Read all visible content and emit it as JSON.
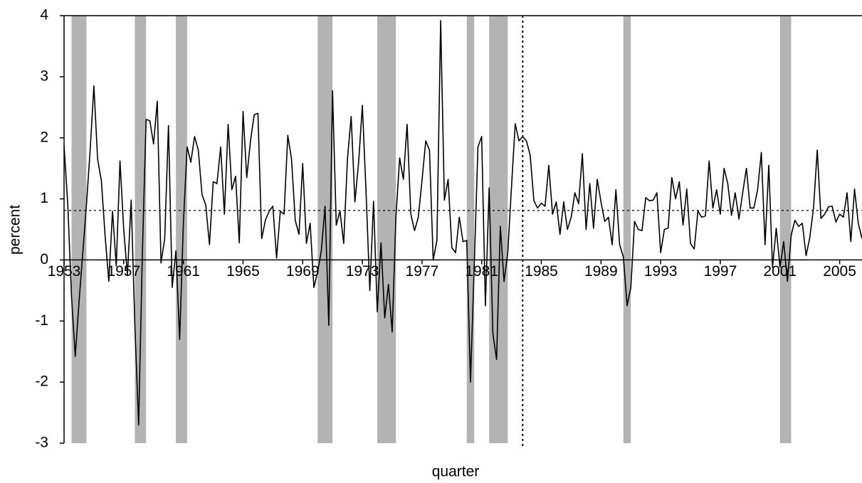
{
  "chart_data": {
    "type": "line",
    "x_label": "quarter",
    "y_label": "percent",
    "xlim": [
      1953,
      2006.5
    ],
    "ylim": [
      -3,
      4
    ],
    "xticks": [
      1953,
      1957,
      1961,
      1965,
      1969,
      1973,
      1977,
      1981,
      1985,
      1989,
      1993,
      1997,
      2001,
      2005
    ],
    "yticks": [
      -3,
      -2,
      -1,
      0,
      1,
      2,
      3,
      4
    ],
    "shaded_periods": [
      [
        1953.5,
        1954.5
      ],
      [
        1957.75,
        1958.5
      ],
      [
        1960.5,
        1961.25
      ],
      [
        1970,
        1971
      ],
      [
        1974,
        1975.25
      ],
      [
        1980,
        1980.5
      ],
      [
        1981.5,
        1982.75
      ],
      [
        1990.5,
        1991
      ],
      [
        2001,
        2001.75
      ]
    ],
    "shade_color": "#b3b3b3",
    "reference_y": 0.81,
    "reference_x": 1983.75,
    "series": [
      {
        "color": "#000000",
        "x": [
          1953,
          1953.25,
          1953.5,
          1953.75,
          1954,
          1954.25,
          1954.5,
          1954.75,
          1955,
          1955.25,
          1955.5,
          1955.75,
          1956,
          1956.25,
          1956.5,
          1956.75,
          1957,
          1957.25,
          1957.5,
          1957.75,
          1958,
          1958.25,
          1958.5,
          1958.75,
          1959,
          1959.25,
          1959.5,
          1959.75,
          1960,
          1960.25,
          1960.5,
          1960.75,
          1961,
          1961.25,
          1961.5,
          1961.75,
          1962,
          1962.25,
          1962.5,
          1962.75,
          1963,
          1963.25,
          1963.5,
          1963.75,
          1964,
          1964.25,
          1964.5,
          1964.75,
          1965,
          1965.25,
          1965.5,
          1965.75,
          1966,
          1966.25,
          1966.5,
          1966.75,
          1967,
          1967.25,
          1967.5,
          1967.75,
          1968,
          1968.25,
          1968.5,
          1968.75,
          1969,
          1969.25,
          1969.5,
          1969.75,
          1970,
          1970.25,
          1970.5,
          1970.75,
          1971,
          1971.25,
          1971.5,
          1971.75,
          1972,
          1972.25,
          1972.5,
          1972.75,
          1973,
          1973.25,
          1973.5,
          1973.75,
          1974,
          1974.25,
          1974.5,
          1974.75,
          1975,
          1975.25,
          1975.5,
          1975.75,
          1976,
          1976.25,
          1976.5,
          1976.75,
          1977,
          1977.25,
          1977.5,
          1977.75,
          1978,
          1978.25,
          1978.5,
          1978.75,
          1979,
          1979.25,
          1979.5,
          1979.75,
          1980,
          1980.25,
          1980.5,
          1980.75,
          1981,
          1981.25,
          1981.5,
          1981.75,
          1982,
          1982.25,
          1982.5,
          1982.75,
          1983,
          1983.25,
          1983.5,
          1983.75,
          1984,
          1984.25,
          1984.5,
          1984.75,
          1985,
          1985.25,
          1985.5,
          1985.75,
          1986,
          1986.25,
          1986.5,
          1986.75,
          1987,
          1987.25,
          1987.5,
          1987.75,
          1988,
          1988.25,
          1988.5,
          1988.75,
          1989,
          1989.25,
          1989.5,
          1989.75,
          1990,
          1990.25,
          1990.5,
          1990.75,
          1991,
          1991.25,
          1991.5,
          1991.75,
          1992,
          1992.25,
          1992.5,
          1992.75,
          1993,
          1993.25,
          1993.5,
          1993.75,
          1994,
          1994.25,
          1994.5,
          1994.75,
          1995,
          1995.25,
          1995.5,
          1995.75,
          1996,
          1996.25,
          1996.5,
          1996.75,
          1997,
          1997.25,
          1997.5,
          1997.75,
          1998,
          1998.25,
          1998.5,
          1998.75,
          1999,
          1999.25,
          1999.5,
          1999.75,
          2000,
          2000.25,
          2000.5,
          2000.75,
          2001,
          2001.25,
          2001.5,
          2001.75,
          2002,
          2002.25,
          2002.5,
          2002.75,
          2003,
          2003.25,
          2003.5,
          2003.75,
          2004,
          2004.25,
          2004.5,
          2004.75,
          2005,
          2005.25,
          2005.5,
          2005.75,
          2006,
          2006.25,
          2006.5
        ],
        "values": [
          1.87,
          0.9,
          -0.6,
          -1.58,
          -0.7,
          0.1,
          0.9,
          1.8,
          2.85,
          1.65,
          1.3,
          0.4,
          -0.35,
          0.8,
          -0.1,
          1.62,
          0.5,
          -0.25,
          0.98,
          -1.1,
          -2.7,
          0.1,
          2.3,
          2.28,
          1.9,
          2.6,
          -0.05,
          0.35,
          2.2,
          -0.45,
          0.15,
          -1.3,
          0.6,
          1.85,
          1.6,
          2.02,
          1.8,
          1.07,
          0.9,
          0.25,
          1.28,
          1.25,
          1.85,
          0.75,
          2.22,
          1.15,
          1.37,
          0.28,
          2.43,
          1.35,
          1.95,
          2.38,
          2.4,
          0.35,
          0.65,
          0.8,
          0.88,
          0.03,
          0.8,
          0.75,
          2.04,
          1.65,
          0.65,
          0.42,
          1.58,
          0.27,
          0.6,
          -0.45,
          -0.2,
          0.15,
          0.88,
          -1.07,
          2.77,
          0.57,
          0.8,
          0.27,
          1.65,
          2.35,
          0.95,
          1.6,
          2.53,
          1.1,
          -0.5,
          0.96,
          -0.85,
          0.28,
          -0.95,
          -0.4,
          -1.18,
          0.7,
          1.67,
          1.32,
          2.22,
          0.75,
          0.48,
          0.7,
          1.3,
          1.95,
          1.8,
          0.0,
          0.32,
          3.92,
          0.98,
          1.32,
          0.2,
          0.12,
          0.7,
          0.3,
          0.32,
          -2.0,
          -0.1,
          1.85,
          2.02,
          -0.75,
          1.18,
          -1.2,
          -1.63,
          0.55,
          -0.35,
          0.12,
          1.2,
          2.23,
          1.95,
          2.02,
          1.95,
          1.72,
          0.97,
          0.85,
          0.93,
          0.88,
          1.55,
          0.75,
          0.95,
          0.42,
          0.95,
          0.5,
          0.7,
          1.1,
          0.92,
          1.74,
          0.5,
          1.25,
          0.52,
          1.32,
          0.95,
          0.63,
          0.7,
          0.25,
          1.15,
          0.25,
          0.05,
          -0.75,
          -0.45,
          0.63,
          0.5,
          0.48,
          1.02,
          0.97,
          0.98,
          1.1,
          0.12,
          0.5,
          0.52,
          1.35,
          1.0,
          1.28,
          0.57,
          1.16,
          0.27,
          0.18,
          0.8,
          0.7,
          0.72,
          1.62,
          0.85,
          1.15,
          0.75,
          1.5,
          1.25,
          0.73,
          1.1,
          0.67,
          1.1,
          1.5,
          0.85,
          0.85,
          1.15,
          1.76,
          0.25,
          1.55,
          -0.12,
          0.52,
          -0.12,
          0.3,
          -0.35,
          0.4,
          0.65,
          0.55,
          0.6,
          0.07,
          0.37,
          0.85,
          1.8,
          0.68,
          0.75,
          0.87,
          0.88,
          0.62,
          0.75,
          0.7,
          1.1,
          0.3,
          1.16,
          0.6,
          0.35
        ]
      }
    ]
  }
}
